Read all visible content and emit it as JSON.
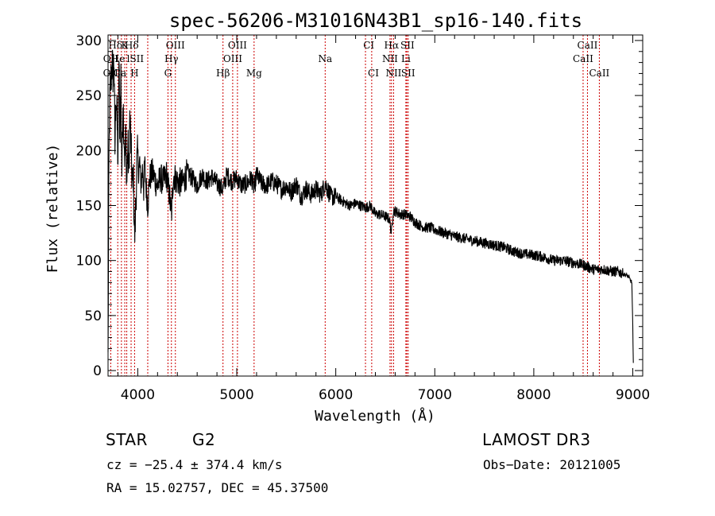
{
  "chart_data": {
    "type": "line",
    "title": "spec-56206-M31016N43B1_sp16-140.fits",
    "xlabel": "Wavelength (Å)",
    "ylabel": "Flux (relative)",
    "xlim": [
      3700,
      9100
    ],
    "ylim": [
      -5,
      305
    ],
    "xticks": [
      4000,
      5000,
      6000,
      7000,
      8000,
      9000
    ],
    "yticks": [
      0,
      50,
      100,
      150,
      200,
      250,
      300
    ],
    "grid": false,
    "series": [
      {
        "name": "flux",
        "color": "#000000",
        "x": [
          3700,
          3705,
          3710,
          3715,
          3720,
          3730,
          3740,
          3750,
          3760,
          3770,
          3780,
          3790,
          3800,
          3810,
          3820,
          3830,
          3840,
          3850,
          3860,
          3870,
          3880,
          3889,
          3900,
          3910,
          3920,
          3933,
          3945,
          3955,
          3968,
          3980,
          3990,
          4000,
          4010,
          4020,
          4030,
          4040,
          4050,
          4060,
          4070,
          4080,
          4101,
          4120,
          4150,
          4180,
          4200,
          4230,
          4260,
          4290,
          4320,
          4340,
          4360,
          4400,
          4450,
          4500,
          4550,
          4600,
          4650,
          4700,
          4750,
          4800,
          4861,
          4900,
          4950,
          5000,
          5050,
          5100,
          5150,
          5175,
          5200,
          5250,
          5300,
          5350,
          5400,
          5450,
          5500,
          5550,
          5600,
          5650,
          5700,
          5750,
          5800,
          5850,
          5893,
          5950,
          6000,
          6050,
          6100,
          6150,
          6200,
          6250,
          6300,
          6350,
          6400,
          6450,
          6500,
          6540,
          6563,
          6580,
          6600,
          6650,
          6700,
          6750,
          6800,
          6850,
          6900,
          6950,
          7000,
          7100,
          7200,
          7300,
          7400,
          7500,
          7600,
          7700,
          7800,
          7900,
          8000,
          8100,
          8200,
          8300,
          8400,
          8500,
          8600,
          8700,
          8800,
          8850,
          8900,
          8950,
          8990,
          9000,
          9005
        ],
        "values": [
          10,
          110,
          195,
          230,
          250,
          265,
          280,
          270,
          285,
          200,
          255,
          230,
          190,
          280,
          210,
          270,
          180,
          250,
          220,
          190,
          215,
          170,
          205,
          180,
          230,
          200,
          165,
          180,
          120,
          150,
          185,
          195,
          180,
          190,
          170,
          175,
          185,
          165,
          190,
          172,
          150,
          175,
          180,
          172,
          168,
          175,
          172,
          178,
          160,
          140,
          178,
          172,
          170,
          180,
          175,
          168,
          178,
          172,
          176,
          170,
          165,
          178,
          172,
          175,
          168,
          170,
          175,
          165,
          178,
          170,
          168,
          172,
          170,
          165,
          168,
          162,
          170,
          158,
          165,
          160,
          165,
          160,
          170,
          158,
          158,
          155,
          152,
          150,
          152,
          150,
          148,
          150,
          142,
          142,
          140,
          138,
          125,
          145,
          145,
          142,
          142,
          140,
          135,
          132,
          130,
          130,
          128,
          125,
          122,
          120,
          118,
          116,
          114,
          112,
          108,
          106,
          105,
          103,
          100,
          100,
          98,
          96,
          92,
          92,
          90,
          90,
          88,
          86,
          80,
          40,
          5
        ]
      }
    ],
    "line_labels": [
      {
        "text": "Hδ",
        "x": 3774,
        "row": 1
      },
      {
        "text": "K",
        "x": 3868,
        "row": 1
      },
      {
        "text": "Hδ",
        "x": 3939,
        "row": 1
      },
      {
        "text": "OIII",
        "x": 4380,
        "row": 1
      },
      {
        "text": "OIII",
        "x": 5007,
        "row": 1
      },
      {
        "text": "CI",
        "x": 6333,
        "row": 1
      },
      {
        "text": "Hα",
        "x": 6563,
        "row": 1
      },
      {
        "text": "SII",
        "x": 6724,
        "row": 1
      },
      {
        "text": "CaII",
        "x": 8542,
        "row": 1
      },
      {
        "text": "OII",
        "x": 3727,
        "row": 2
      },
      {
        "text": "He",
        "x": 3800,
        "row": 2
      },
      {
        "text": "lSII",
        "x": 3976,
        "row": 2
      },
      {
        "text": "Hγ",
        "x": 4340,
        "row": 2
      },
      {
        "text": "OIII",
        "x": 4959,
        "row": 2
      },
      {
        "text": "Na",
        "x": 5893,
        "row": 2
      },
      {
        "text": "NII",
        "x": 6548,
        "row": 2
      },
      {
        "text": "Li",
        "x": 6708,
        "row": 2
      },
      {
        "text": "CaII",
        "x": 8498,
        "row": 2
      },
      {
        "text": "OII",
        "x": 3726,
        "row": 3
      },
      {
        "text": "Ca",
        "x": 3820,
        "row": 3
      },
      {
        "text": "H",
        "x": 3968,
        "row": 3
      },
      {
        "text": "G",
        "x": 4305,
        "row": 3
      },
      {
        "text": "Hβ",
        "x": 4861,
        "row": 3
      },
      {
        "text": "Mg",
        "x": 5175,
        "row": 3
      },
      {
        "text": "CI",
        "x": 6380,
        "row": 3
      },
      {
        "text": "NII",
        "x": 6584,
        "row": 3
      },
      {
        "text": "SII",
        "x": 6731,
        "row": 3
      },
      {
        "text": "CaII",
        "x": 8662,
        "row": 3
      }
    ],
    "marker_lines": [
      3727,
      3798,
      3835,
      3869,
      3889,
      3933,
      3968,
      4101,
      4305,
      4340,
      4380,
      4861,
      4959,
      5007,
      5175,
      5893,
      6300,
      6363,
      6548,
      6563,
      6584,
      6708,
      6717,
      6731,
      8498,
      8542,
      8662
    ],
    "marker_color": "#cc0000"
  },
  "info": {
    "object_class": "STAR",
    "subclass": "G2",
    "survey": "LAMOST DR3",
    "cz": "cz = −25.4 ± 374.4 km/s",
    "obs_date": "Obs−Date: 20121005",
    "coords": "RA =  15.02757, DEC =  45.37500"
  }
}
